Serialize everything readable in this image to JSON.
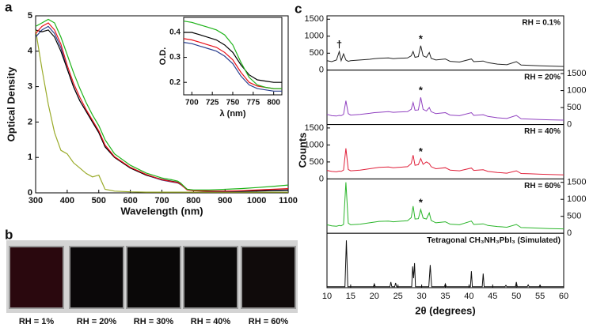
{
  "panel_labels": [
    "a",
    "b",
    "c"
  ],
  "photos": [
    {
      "label": "RH = 1%",
      "color": "#2a080e"
    },
    {
      "label": "RH = 20%",
      "color": "#0b0809"
    },
    {
      "label": "RH = 30%",
      "color": "#0a0808"
    },
    {
      "label": "RH = 40%",
      "color": "#0b0909"
    },
    {
      "label": "RH = 60%",
      "color": "#100b0b"
    }
  ],
  "chart_data": [
    {
      "type": "line",
      "xlabel": "Wavelength (nm)",
      "ylabel": "Optical Density",
      "xlim": [
        300,
        1100
      ],
      "xticks": [
        300,
        400,
        500,
        600,
        700,
        800,
        900,
        1000,
        1100
      ],
      "ylim": [
        0,
        5
      ],
      "yticks": [
        0,
        1,
        2,
        3,
        4,
        5
      ],
      "x": [
        300,
        320,
        340,
        360,
        380,
        400,
        420,
        440,
        460,
        480,
        500,
        520,
        550,
        600,
        650,
        700,
        730,
        750,
        760,
        780,
        800,
        850,
        900,
        950,
        1000,
        1050,
        1100
      ],
      "series": [
        {
          "color": "#9aab2a",
          "values": [
            4.6,
            3.5,
            2.5,
            1.7,
            1.2,
            1.1,
            0.85,
            0.7,
            0.55,
            0.45,
            0.5,
            0.1,
            0.05,
            0.03,
            0.02,
            0.02,
            0.02,
            0.02,
            0.02,
            0.02,
            0.02,
            0.02,
            0.02,
            0.02,
            0.02,
            0.02,
            0.02
          ]
        },
        {
          "color": "#2a3f8f",
          "values": [
            4.4,
            4.6,
            4.7,
            4.5,
            4.1,
            3.5,
            3.0,
            2.6,
            2.3,
            2.0,
            1.7,
            1.3,
            1.0,
            0.7,
            0.5,
            0.36,
            0.31,
            0.28,
            0.23,
            0.09,
            0.06,
            0.04,
            0.04,
            0.04,
            0.05,
            0.06,
            0.07
          ]
        },
        {
          "color": "#000000",
          "values": [
            4.6,
            4.55,
            4.6,
            4.4,
            4.0,
            3.5,
            3.0,
            2.6,
            2.3,
            2.0,
            1.7,
            1.3,
            1.0,
            0.7,
            0.5,
            0.38,
            0.33,
            0.3,
            0.25,
            0.1,
            0.07,
            0.05,
            0.05,
            0.05,
            0.06,
            0.07,
            0.08
          ]
        },
        {
          "color": "#e8101a",
          "values": [
            4.5,
            4.7,
            4.8,
            4.6,
            4.2,
            3.6,
            3.1,
            2.7,
            2.35,
            2.05,
            1.75,
            1.35,
            1.02,
            0.72,
            0.52,
            0.37,
            0.32,
            0.29,
            0.24,
            0.08,
            0.06,
            0.05,
            0.05,
            0.06,
            0.08,
            0.1,
            0.12
          ]
        },
        {
          "color": "#1fb31a",
          "values": [
            4.7,
            4.8,
            4.9,
            4.8,
            4.4,
            3.9,
            3.4,
            2.95,
            2.55,
            2.2,
            1.9,
            1.5,
            1.1,
            0.78,
            0.56,
            0.42,
            0.37,
            0.33,
            0.27,
            0.1,
            0.08,
            0.08,
            0.1,
            0.12,
            0.15,
            0.18,
            0.22
          ]
        }
      ]
    },
    {
      "type": "line",
      "xlabel": "λ (nm)",
      "ylabel": "O.D.",
      "xlim": [
        690,
        810
      ],
      "xticks": [
        700,
        725,
        750,
        775,
        800
      ],
      "ylim": [
        0.15,
        0.46
      ],
      "yticks": [
        0.2,
        0.3,
        0.4
      ],
      "x": [
        690,
        700,
        710,
        720,
        730,
        740,
        750,
        760,
        770,
        780,
        790,
        800,
        810
      ],
      "series": [
        {
          "color": "#2a3f8f",
          "values": [
            0.36,
            0.355,
            0.345,
            0.335,
            0.325,
            0.305,
            0.275,
            0.225,
            0.19,
            0.175,
            0.17,
            0.165,
            0.165
          ]
        },
        {
          "color": "#e8101a",
          "values": [
            0.375,
            0.37,
            0.36,
            0.35,
            0.34,
            0.32,
            0.29,
            0.24,
            0.2,
            0.185,
            0.18,
            0.175,
            0.175
          ]
        },
        {
          "color": "#000000",
          "values": [
            0.4,
            0.4,
            0.39,
            0.38,
            0.37,
            0.35,
            0.32,
            0.27,
            0.23,
            0.21,
            0.205,
            0.2,
            0.2
          ]
        },
        {
          "color": "#1fb31a",
          "values": [
            0.445,
            0.44,
            0.43,
            0.42,
            0.41,
            0.39,
            0.35,
            0.28,
            0.22,
            0.19,
            0.18,
            0.175,
            0.175
          ]
        }
      ]
    },
    {
      "type": "stacked_line",
      "xlabel": "2θ (degrees)",
      "ylabel": "Counts",
      "xlim": [
        10,
        60
      ],
      "xticks": [
        10,
        15,
        20,
        25,
        30,
        35,
        40,
        45,
        50,
        55,
        60
      ],
      "x": [
        10,
        11,
        12,
        12.6,
        13,
        13.5,
        14,
        14.5,
        15,
        17,
        19,
        20,
        21,
        23,
        24,
        25,
        27,
        27.8,
        28.2,
        28.6,
        29.3,
        29.8,
        30.3,
        31,
        31.6,
        32,
        33,
        35,
        36,
        38,
        40.5,
        41,
        43,
        44,
        46,
        48,
        50,
        51,
        53,
        55,
        57,
        60
      ],
      "panels": [
        {
          "label": "RH = 0.1%",
          "color": "#222222",
          "ylim": [
            0,
            1600
          ],
          "yticks": [
            0,
            500,
            1000,
            1500
          ],
          "tick_side": "left",
          "markers": [
            {
              "text": "†",
              "x": 12.6
            },
            {
              "text": "*",
              "x": 29.8
            }
          ],
          "values": [
            280,
            250,
            300,
            550,
            280,
            480,
            300,
            260,
            280,
            300,
            320,
            340,
            350,
            360,
            340,
            350,
            360,
            420,
            550,
            380,
            400,
            720,
            420,
            380,
            520,
            350,
            300,
            330,
            260,
            240,
            330,
            250,
            270,
            220,
            180,
            160,
            250,
            150,
            140,
            130,
            120,
            110
          ]
        },
        {
          "label": "RH = 20%",
          "color": "#9040c0",
          "ylim": [
            0,
            1600
          ],
          "yticks": [
            0,
            500,
            1000,
            1500
          ],
          "tick_side": "right",
          "markers": [
            {
              "text": "*",
              "x": 29.8
            }
          ],
          "values": [
            300,
            260,
            250,
            270,
            260,
            300,
            700,
            320,
            280,
            300,
            330,
            350,
            360,
            380,
            360,
            370,
            380,
            450,
            650,
            420,
            430,
            800,
            450,
            400,
            500,
            380,
            320,
            350,
            280,
            260,
            350,
            270,
            290,
            240,
            200,
            180,
            270,
            170,
            160,
            150,
            140,
            130
          ]
        },
        {
          "label": "RH = 40%",
          "color": "#e0203a",
          "ylim": [
            0,
            1600
          ],
          "yticks": [
            0,
            500,
            1000,
            1500
          ],
          "tick_side": "left",
          "markers": [
            {
              "text": "*",
              "x": 29.8
            }
          ],
          "values": [
            250,
            220,
            210,
            230,
            220,
            260,
            900,
            280,
            240,
            260,
            300,
            320,
            340,
            350,
            330,
            340,
            360,
            450,
            700,
            400,
            420,
            600,
            430,
            500,
            450,
            360,
            300,
            330,
            260,
            240,
            320,
            250,
            270,
            220,
            190,
            170,
            240,
            160,
            150,
            140,
            130,
            120
          ]
        },
        {
          "label": "RH = 60%",
          "color": "#2ab52a",
          "ylim": [
            0,
            1600
          ],
          "yticks": [
            0,
            500,
            1000,
            1500
          ],
          "tick_side": "right",
          "markers": [
            {
              "text": "*",
              "x": 29.8
            }
          ],
          "values": [
            250,
            220,
            210,
            230,
            220,
            260,
            1500,
            300,
            250,
            270,
            310,
            330,
            350,
            360,
            340,
            350,
            370,
            460,
            800,
            420,
            430,
            700,
            450,
            420,
            600,
            380,
            310,
            340,
            270,
            250,
            360,
            260,
            280,
            230,
            200,
            180,
            260,
            170,
            160,
            150,
            140,
            130
          ]
        },
        {
          "label": "Tetragonal CH₃NH₃PbI₃ (Simulated)",
          "color": "#111111",
          "ylim": [
            0,
            1.15
          ],
          "x": [
            10,
            13.8,
            14.1,
            14.4,
            19.8,
            20,
            20.2,
            23.3,
            23.5,
            23.7,
            24.3,
            24.5,
            24.7,
            27.9,
            28.1,
            28.3,
            28.5,
            28.7,
            31.5,
            31.8,
            32.1,
            34.8,
            35,
            35.2,
            40.3,
            40.5,
            40.7,
            42.8,
            43,
            43.2,
            47.6,
            47.8,
            48,
            49.8,
            50,
            50.2,
            52.3,
            52.5,
            52.7,
            54.8,
            55,
            55.2,
            60
          ],
          "values": [
            0.02,
            0.02,
            1.0,
            0.02,
            0.02,
            0.08,
            0.02,
            0.02,
            0.12,
            0.02,
            0.02,
            0.1,
            0.02,
            0.02,
            0.45,
            0.2,
            0.52,
            0.02,
            0.02,
            0.48,
            0.02,
            0.02,
            0.08,
            0.02,
            0.02,
            0.35,
            0.02,
            0.02,
            0.3,
            0.02,
            0.02,
            0.05,
            0.02,
            0.02,
            0.12,
            0.02,
            0.02,
            0.06,
            0.02,
            0.02,
            0.05,
            0.02,
            0.02
          ]
        }
      ]
    }
  ]
}
